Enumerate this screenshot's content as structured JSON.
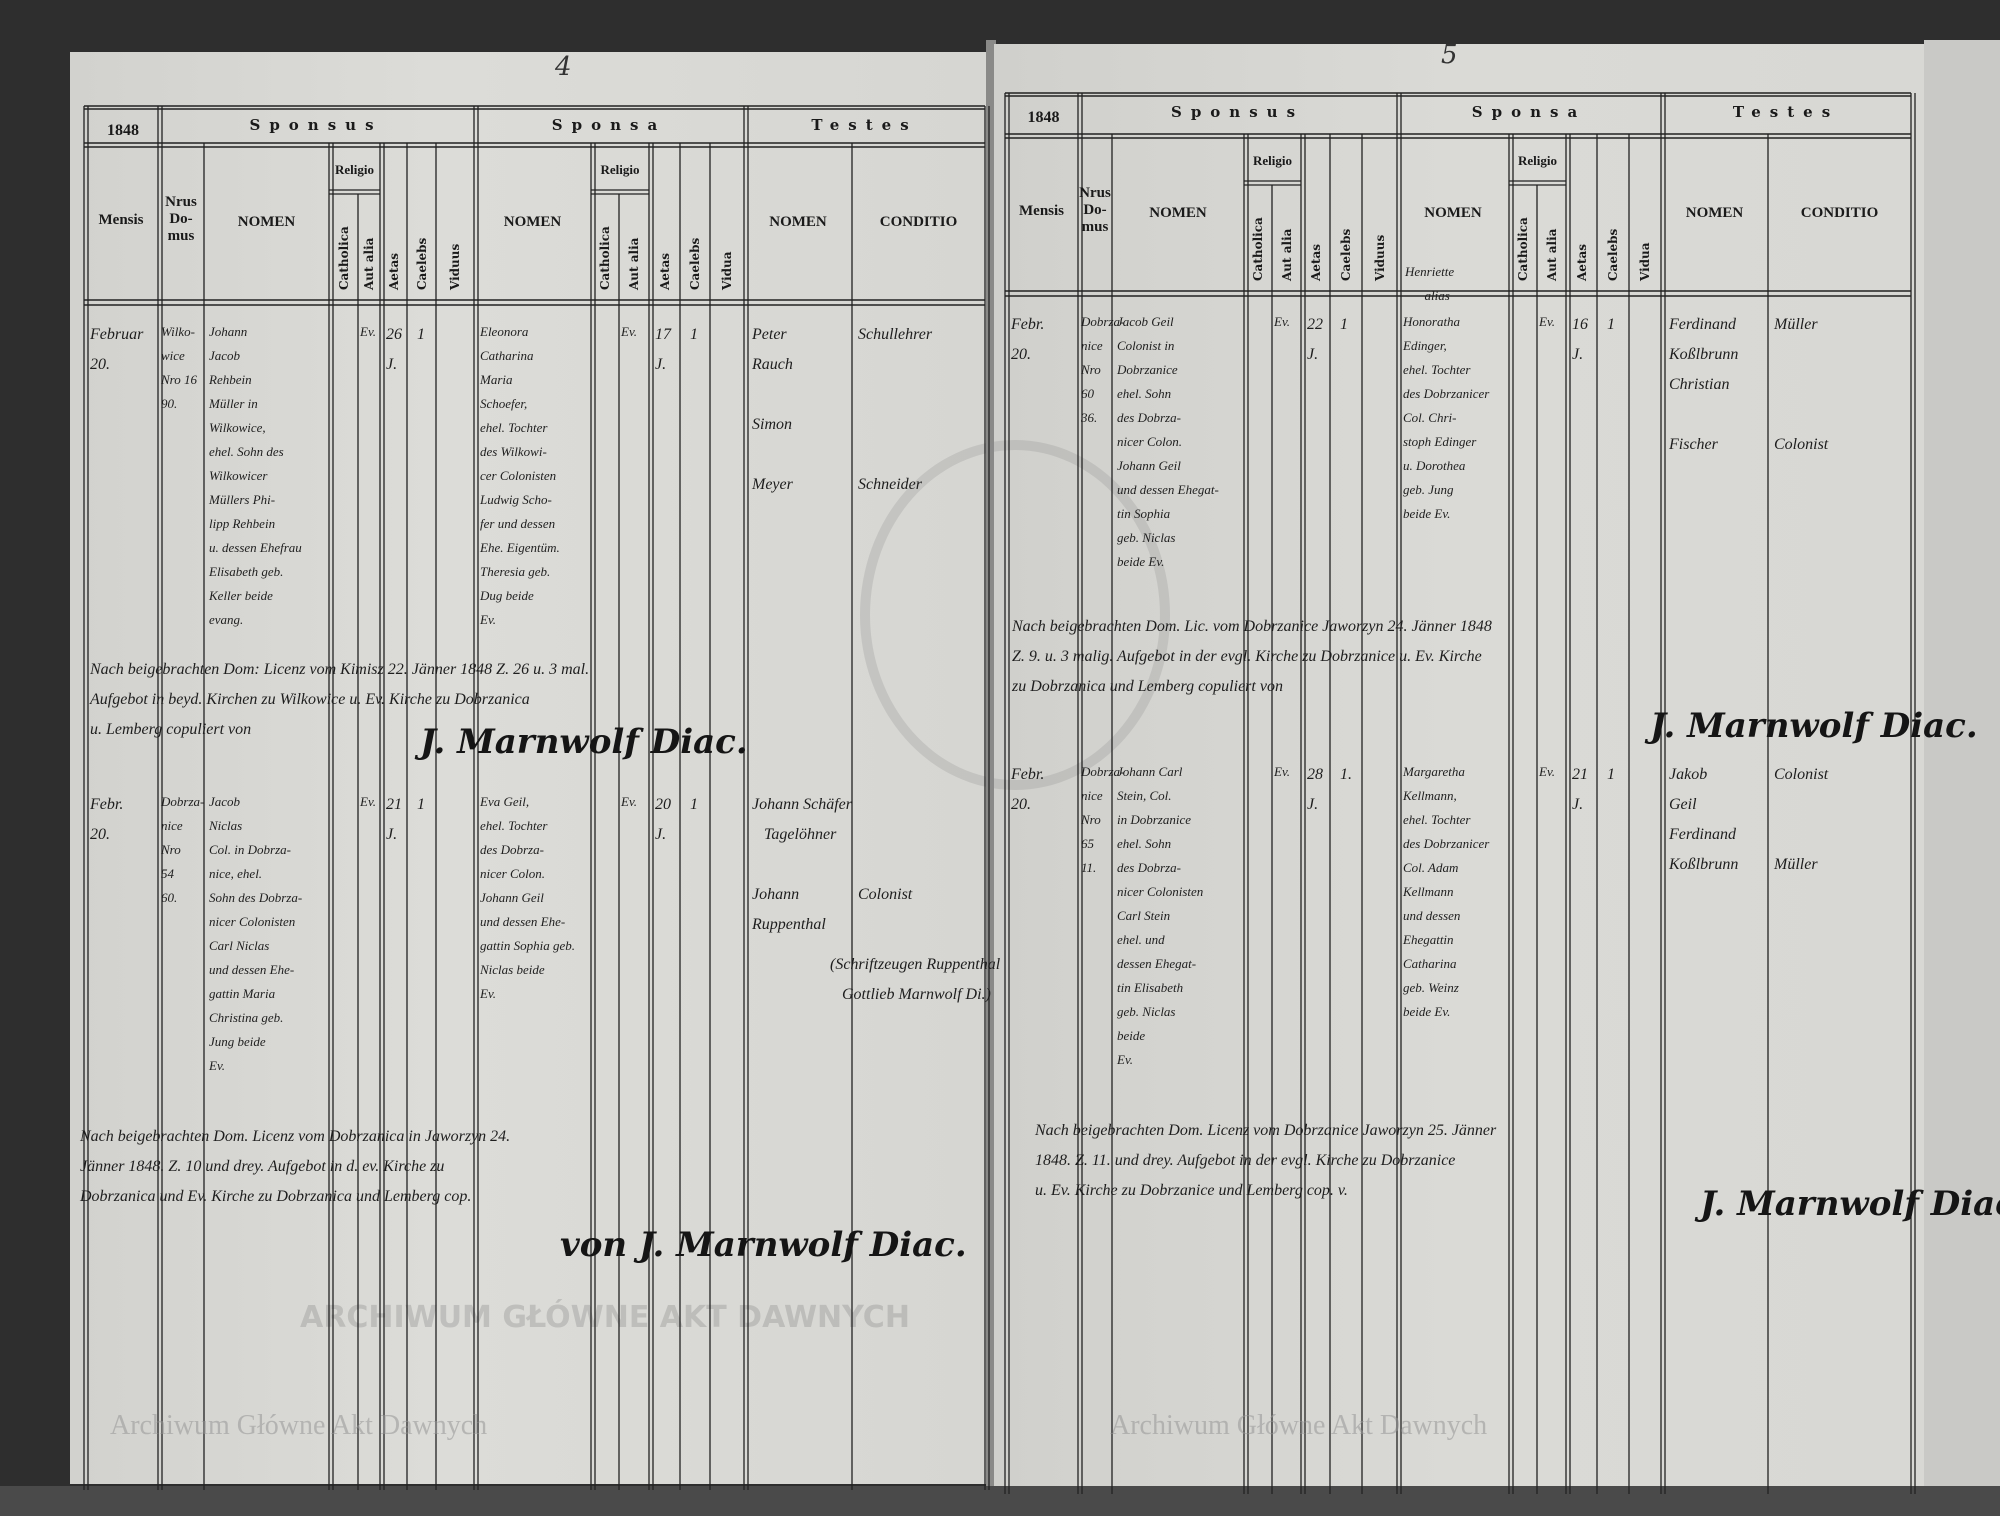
{
  "document": {
    "watermark": "Archiwum Główne Akt Dawnych",
    "stamp": "ARCHIWUM GŁÓWNE AKT DAWNYCH",
    "pages": [
      {
        "page_number": "4",
        "year": "1848",
        "headers": {
          "mensis": "Mensis",
          "nrus_domus": "Nrus\nDo-\nmus",
          "sponsus": "Sponsus",
          "sponsa": "Sponsa",
          "testes": "Testes",
          "nomen": "NOMEN",
          "religio": "Religio",
          "catholica": "Catholica",
          "aut_alia": "Aut alia",
          "aetas": "Aetas",
          "caelebs": "Caelebs",
          "viduus": "Viduus",
          "vidua": "Vidua",
          "conditio": "CONDITIO"
        },
        "entries": [
          {
            "mensis": "Februar\n20.",
            "nrus_domus": "Wilko-\nwice\nNro 16\n90.",
            "sponsus_nomen": "Johann\nJacob\nRehbein\nMüller in\nWilkowice,\nehel. Sohn des\nWilkowicer\nMüllers Phi-\nlipp Rehbein\nu. dessen Ehefrau\nElisabeth geb.\nKeller beide\nevang.",
            "sponsus_religio": "Ev.",
            "sponsus_aetas": "26\nJ.",
            "sponsus_caelebs": "1",
            "sponsa_nomen": "Eleonora\nCatharina\nMaria\nSchoefer,\nehel. Tochter\ndes Wilkowi-\ncer Colonisten\nLudwig Scho-\nfer und dessen\nEhe. Eigentüm.\nTheresia geb.\nDug beide\nEv.",
            "sponsa_religio": "Ev.",
            "sponsa_aetas": "17\nJ.",
            "sponsa_caelebs": "1",
            "testes_nomen": "Peter\nRauch\n\nSimon\n\nMeyer",
            "testes_conditio": "Schullehrer\n\n\n\n\nSchneider"
          },
          {
            "mensis": "Febr.\n20.",
            "nrus_domus": "Dobrza-\nnice\nNro\n54\n60.",
            "sponsus_nomen": "Jacob\nNiclas\nCol. in Dobrza-\nnice, ehel.\nSohn des Dobrza-\nnicer Colonisten\nCarl Niclas\nund dessen Ehe-\ngattin Maria\nChristina geb.\nJung beide\nEv.",
            "sponsus_religio": "Ev.",
            "sponsus_aetas": "21\nJ.",
            "sponsus_caelebs": "1",
            "sponsa_nomen": "Eva Geil,\nehel. Tochter\ndes Dobrza-\nnicer Colon.\nJohann Geil\nund dessen Ehe-\ngattin Sophia geb.\nNiclas beide\nEv.",
            "sponsa_religio": "Ev.",
            "sponsa_aetas": "20\nJ.",
            "sponsa_caelebs": "1",
            "testes_nomen": "Johann Schäfer\n   Tagelöhner\n\nJohann\nRuppenthal",
            "testes_conditio": "\n\n\nColonist",
            "testes_note": "(Schriftzeugen Ruppenthal\n   Gottlieb Marnwolf Di.)"
          }
        ],
        "notes": [
          {
            "text": "Nach beigebrachten Dom: Licenz vom Kimisz 22. Jänner 1848 Z. 26 u. 3 mal.\nAufgebot in beyd. Kirchen zu Wilkowice u. Ev. Kirche zu Dobrzanica\nu. Lemberg copuliert von",
            "signature": "J. Marnwolf Diac."
          },
          {
            "text": "Nach beigebrachten Dom. Licenz vom Dobrzanica in Jaworzyn 24.\nJänner 1848. Z. 10 und drey. Aufgebot in d. ev. Kirche zu\nDobrzanica und Ev. Kirche zu Dobrzanica und Lemberg cop.",
            "signature": "von J. Marnwolf Diac."
          }
        ]
      },
      {
        "page_number": "5",
        "year": "1848",
        "headers": {
          "mensis": "Mensis",
          "nrus_domus": "Nrus\nDo-\nmus",
          "sponsus": "Sponsus",
          "sponsa": "Sponsa",
          "testes": "Testes",
          "nomen": "NOMEN",
          "religio": "Religio",
          "catholica": "Catholica",
          "aut_alia": "Aut alia",
          "aetas": "Aetas",
          "caelebs": "Caelebs",
          "viduus": "Viduus",
          "vidua": "Vidua",
          "conditio": "CONDITIO"
        },
        "entries": [
          {
            "mensis": "Febr.\n20.",
            "nrus_domus": "Dobrza-\nnice\nNro\n60\n36.",
            "sponsus_nomen": "Jacob Geil\nColonist in\nDobrzanice\nehel. Sohn\ndes Dobrza-\nnicer Colon.\nJohann Geil\nund dessen Ehegat-\ntin Sophia\ngeb. Niclas\nbeide Ev.",
            "sponsus_religio": "Ev.",
            "sponsus_aetas": "22\nJ.",
            "sponsus_caelebs": "1",
            "sponsa_alias": "Henriette\n      alias",
            "sponsa_nomen": "Honoratha\nEdinger,\nehel. Tochter\ndes Dobrzanicer\nCol. Chri-\nstoph Edinger\nu. Dorothea\ngeb. Jung\nbeide Ev.",
            "sponsa_religio": "Ev.",
            "sponsa_aetas": "16\nJ.",
            "sponsa_caelebs": "1",
            "testes_nomen": "Ferdinand\nKoßlbrunn\nChristian\n\nFischer",
            "testes_conditio": "Müller\n\n\n\nColonist"
          },
          {
            "mensis": "Febr.\n20.",
            "nrus_domus": "Dobrza-\nnice\nNro\n65\n11.",
            "sponsus_nomen": "Johann Carl\nStein, Col.\nin Dobrzanice\nehel. Sohn\ndes Dobrza-\nnicer Colonisten\nCarl Stein\nehel. und\ndessen Ehegat-\ntin Elisabeth\ngeb. Niclas\nbeide\nEv.",
            "sponsus_religio": "Ev.",
            "sponsus_aetas": "28\nJ.",
            "sponsus_caelebs": "1.",
            "sponsa_nomen": "Margaretha\nKellmann,\nehel. Tochter\ndes Dobrzanicer\nCol. Adam\nKellmann\nund dessen\nEhegattin\nCatharina\ngeb. Weinz\nbeide Ev.",
            "sponsa_religio": "Ev.",
            "sponsa_aetas": "21\nJ.",
            "sponsa_caelebs": "1",
            "testes_nomen": "Jakob\nGeil\nFerdinand\nKoßlbrunn",
            "testes_conditio": "Colonist\n\n\nMüller"
          }
        ],
        "notes": [
          {
            "text": "Nach beigebrachten Dom. Lic. vom Dobrzanice Jaworzyn 24. Jänner 1848\nZ. 9. u. 3 malig. Aufgebot in der evgl. Kirche zu Dobrzanice u. Ev. Kirche\nzu Dobrzanica und Lemberg copuliert von",
            "signature": "J. Marnwolf Diac."
          },
          {
            "text": "Nach beigebrachten Dom. Licenz vom Dobrzanice Jaworzyn 25. Jänner\n1848. Z. 11. und drey. Aufgebot in der evgl. Kirche zu Dobrzanice\nu. Ev. Kirche zu Dobrzanice und Lemberg cop. v.",
            "signature": "J. Marnwolf Diac."
          }
        ]
      }
    ]
  }
}
